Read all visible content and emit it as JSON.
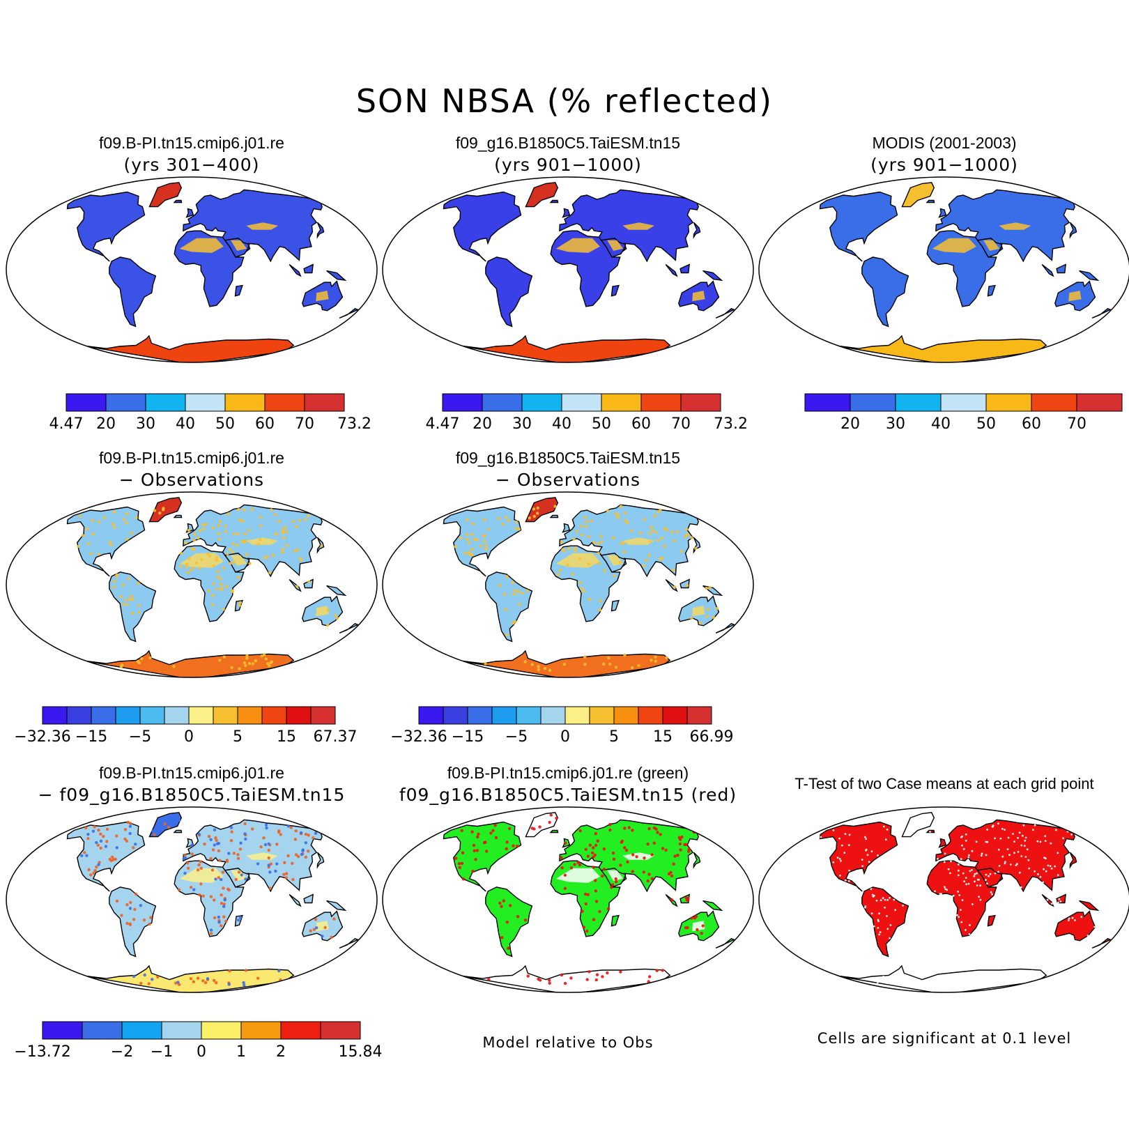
{
  "title": "SON NBSA (% reflected)",
  "colors": {
    "ocean": "#ffffff",
    "outline": "#000000",
    "green": "#22ee22",
    "red": "#ee1111"
  },
  "panels": [
    {
      "id": "p1",
      "title1": "f09.B-PI.tn15.cmip6.j01.re",
      "title2": "(yrs 301−400)",
      "land": "#3a52e6",
      "antarctic": "#f04410",
      "greenland": "#d63020",
      "deserts": "#f7c030",
      "colorbar": {
        "colors": [
          "#3a18f0",
          "#3a6ee8",
          "#12b4f0",
          "#c2e4f4",
          "#f7b818",
          "#f04412",
          "#d63030"
        ],
        "labels": [
          "4.47",
          "20",
          "30",
          "40",
          "50",
          "60",
          "70",
          "73.23"
        ],
        "mode": "edges"
      }
    },
    {
      "id": "p2",
      "title1": "f09_g16.B1850C5.TaiESM.tn15",
      "title2": "(yrs 901−1000)",
      "land": "#3a40e8",
      "antarctic": "#f04410",
      "greenland": "#d63020",
      "deserts": "#f7c030",
      "colorbar": {
        "colors": [
          "#3a18f0",
          "#3a6ee8",
          "#12b4f0",
          "#c2e4f4",
          "#f7b818",
          "#f04412",
          "#d63030"
        ],
        "labels": [
          "4.47",
          "20",
          "30",
          "40",
          "50",
          "60",
          "70",
          "73.26"
        ],
        "mode": "edges"
      }
    },
    {
      "id": "p3",
      "title1": "MODIS (2001-2003)",
      "title2": "(yrs 901−1000)",
      "land": "#3a6ee8",
      "antarctic": "#f7b818",
      "greenland": "#f7c030",
      "deserts": "#f7c030",
      "colorbar": {
        "colors": [
          "#3a18f0",
          "#3a6ee8",
          "#12b4f0",
          "#c2e4f4",
          "#f7b818",
          "#f04412",
          "#d63030"
        ],
        "labels": [
          "20",
          "30",
          "40",
          "50",
          "60",
          "70"
        ],
        "mode": "inner"
      }
    },
    {
      "id": "p4",
      "title1": "f09.B-PI.tn15.cmip6.j01.re",
      "title2": "− Observations",
      "land": "#8ccaf0",
      "antarctic": "#f07020",
      "greenland": "#d63020",
      "deserts": "#f7d860",
      "colorbar": {
        "colors": [
          "#3a18f0",
          "#3a40e0",
          "#3a6ee8",
          "#1e9cf0",
          "#4cbcf0",
          "#a4d4ee",
          "#fbf088",
          "#f7c030",
          "#f79010",
          "#f04412",
          "#e01010",
          "#d63030"
        ],
        "labels": [
          "−32.36",
          "−15",
          "−5",
          "0",
          "5",
          "15",
          "67.37"
        ],
        "mode": "custom",
        "positions": [
          0,
          2,
          4,
          6,
          8,
          10,
          12
        ]
      }
    },
    {
      "id": "p5",
      "title1": "f09_g16.B1850C5.TaiESM.tn15",
      "title2": "− Observations",
      "land": "#8ccaf0",
      "antarctic": "#f07020",
      "greenland": "#d63020",
      "deserts": "#f7d860",
      "colorbar": {
        "colors": [
          "#3a18f0",
          "#3a40e0",
          "#3a6ee8",
          "#1e9cf0",
          "#4cbcf0",
          "#a4d4ee",
          "#fbf088",
          "#f7c030",
          "#f79010",
          "#f04412",
          "#e01010",
          "#d63030"
        ],
        "labels": [
          "−32.36",
          "−15",
          "−5",
          "0",
          "5",
          "15",
          "66.99"
        ],
        "mode": "custom",
        "positions": [
          0,
          2,
          4,
          6,
          8,
          10,
          12
        ]
      }
    },
    {
      "id": "p7",
      "title1": "f09.B-PI.tn15.cmip6.j01.re",
      "title2": "− f09_g16.B1850C5.TaiESM.tn15",
      "land": "#a4d4ee",
      "antarctic": "#fbe870",
      "greenland": "#3a6ee8",
      "deserts": "#fbf088",
      "colorbar": {
        "colors": [
          "#3a18f0",
          "#3a6ee8",
          "#12a4f0",
          "#a4d4ee",
          "#fbf068",
          "#f79a10",
          "#f02010",
          "#d63030"
        ],
        "labels": [
          "−13.72",
          "−2",
          "−1",
          "0",
          "1",
          "2",
          "15.84"
        ],
        "mode": "custom",
        "positions": [
          0,
          2,
          3,
          4,
          5,
          6,
          8
        ]
      }
    },
    {
      "id": "p8",
      "title1": "f09.B-PI.tn15.cmip6.j01.re (green)",
      "title2": "f09_g16.B1850C5.TaiESM.tn15 (red)",
      "land": "#22ee22",
      "antarctic": "#ffffff",
      "greenland": "#ffffff",
      "deserts": "#ffffff",
      "note": "Model relative to Obs"
    },
    {
      "id": "p9",
      "title1": "T-Test of two Case means at each grid point",
      "title2": "",
      "land": "#ee1111",
      "antarctic": "#ffffff",
      "greenland": "#ffffff",
      "deserts": "#ee1111",
      "note": "Cells are significant at 0.1 level"
    }
  ]
}
